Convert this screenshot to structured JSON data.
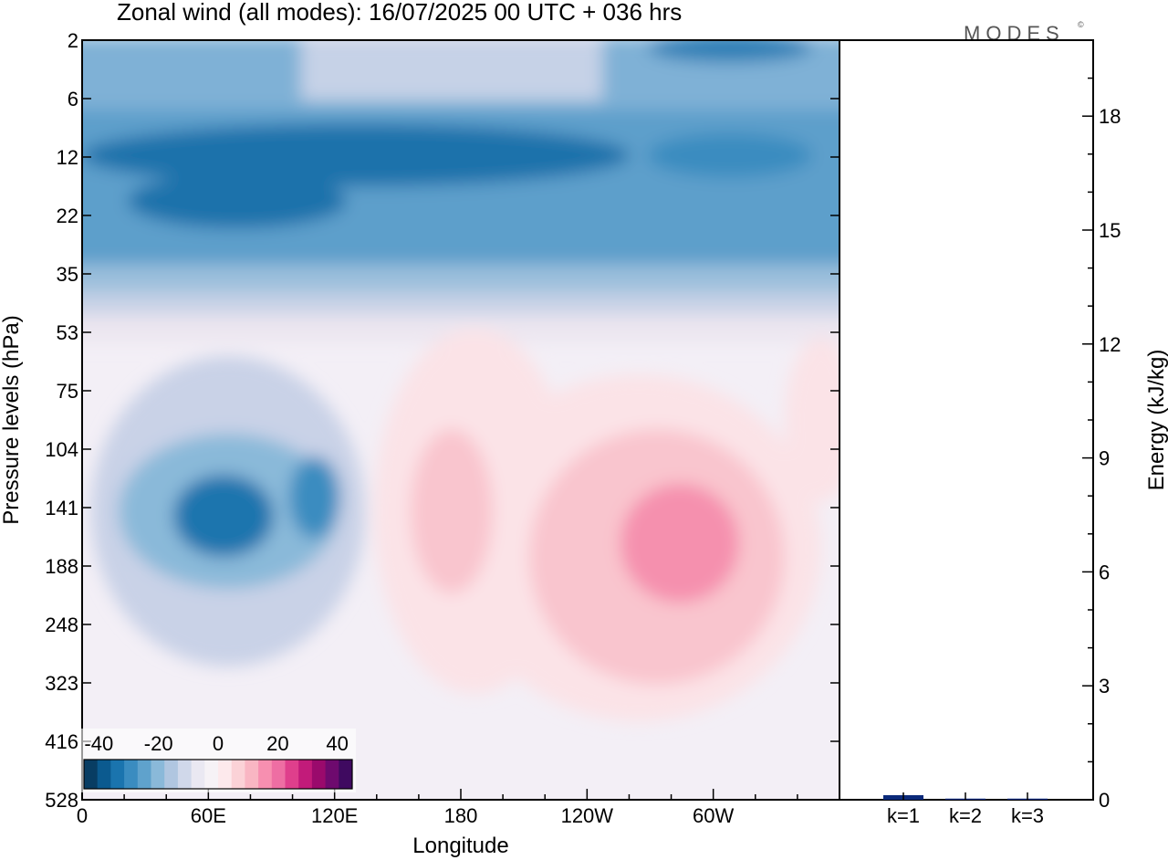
{
  "title": "Zonal wind (all modes):  16/07/2025  00 UTC  + 036 hrs",
  "logo": "MODES",
  "logo_mark": "©",
  "colors": {
    "negative": [
      "#083d63",
      "#0b5a8f",
      "#1a74ae",
      "#3a8cc0",
      "#5fa2cc",
      "#8ab9d9",
      "#b0c6e0",
      "#d0d8ea",
      "#eae8f2"
    ],
    "neutral": "#f6f2f6",
    "positive": [
      "#fde9ec",
      "#fbd2d7",
      "#f9b6c3",
      "#f78fb0",
      "#ee6ea3",
      "#df3f8c",
      "#c21b7a",
      "#9a0a6c",
      "#6e0a6e",
      "#3f0a60"
    ]
  },
  "chart_data": [
    {
      "type": "heatmap",
      "title": "Zonal wind (all modes):  16/07/2025  00 UTC  + 036 hrs",
      "xlabel": "Longitude",
      "ylabel": "Pressure levels (hPa)",
      "x_tick_labels": [
        "0",
        "60E",
        "120E",
        "180",
        "120W",
        "60W"
      ],
      "x_ticks_deg": [
        0,
        60,
        120,
        180,
        240,
        300
      ],
      "xlim": [
        0,
        360
      ],
      "y_tick_labels": [
        "2",
        "6",
        "12",
        "22",
        "35",
        "53",
        "75",
        "104",
        "141",
        "188",
        "248",
        "323",
        "416",
        "528"
      ],
      "y_scale": "model levels (top 2 hPa to bottom 528 hPa)",
      "colorbar": {
        "labels": [
          "-40",
          "-20",
          "0",
          "20",
          "40"
        ],
        "range": [
          -45,
          45
        ],
        "step": 5
      },
      "features": [
        {
          "region": "2–6 hPa",
          "value_ms": -15
        },
        {
          "region": "10–35 hPa, all longitudes",
          "value_ms": -35
        },
        {
          "region": "141 hPa near 65E",
          "value_ms": -35
        },
        {
          "region": "141 hPa near 112E",
          "value_ms": -25
        },
        {
          "region": "141 hPa near 90W",
          "value_ms": 20
        },
        {
          "region": "141 hPa near 170E",
          "value_ms": 10
        },
        {
          "region": "300–500 hPa",
          "value_ms": 2
        }
      ]
    },
    {
      "type": "bar",
      "ylabel": "Energy (kJ/kg)",
      "categories": [
        "k=1",
        "k=2",
        "k=3"
      ],
      "values": [
        0.12,
        0.03,
        0.03
      ],
      "ylim": [
        0,
        20
      ],
      "y_tick_labels": [
        "0",
        "3",
        "6",
        "9",
        "12",
        "15",
        "18"
      ],
      "y_ticks": [
        0,
        3,
        6,
        9,
        12,
        15,
        18
      ],
      "bar_color": "#0b2a7a"
    }
  ]
}
